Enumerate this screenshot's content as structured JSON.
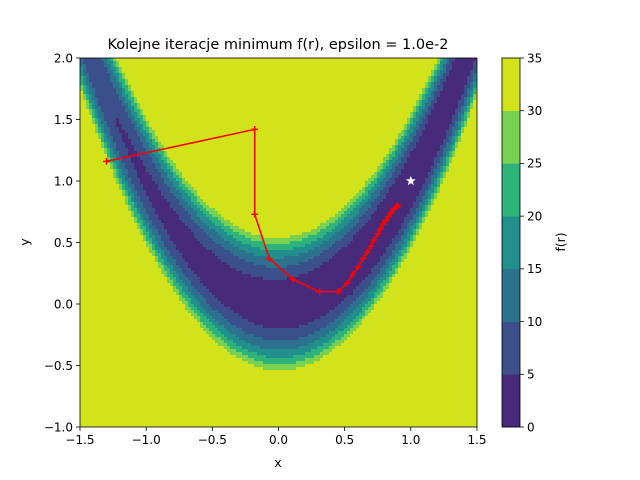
{
  "chart_data": {
    "type": "contour",
    "title": "Kolejne iteracje minimum f(r), epsilon = 1.0e-2",
    "xlabel": "x",
    "ylabel": "y",
    "colorbar_label": "f(r)",
    "function": "rosenbrock",
    "xlim": [
      -1.5,
      1.5
    ],
    "ylim": [
      -1.0,
      2.0
    ],
    "x_ticks": [
      "−1.5",
      "−1.0",
      "−0.5",
      "0.0",
      "0.5",
      "1.0",
      "1.5"
    ],
    "y_ticks": [
      "−1.0",
      "−0.5",
      "0.0",
      "0.5",
      "1.0",
      "1.5",
      "2.0"
    ],
    "x_tick_values": [
      -1.5,
      -1.0,
      -0.5,
      0.0,
      0.5,
      1.0,
      1.5
    ],
    "y_tick_values": [
      -1.0,
      -0.5,
      0.0,
      0.5,
      1.0,
      1.5,
      2.0
    ],
    "levels": [
      0,
      5,
      10,
      15,
      20,
      25,
      30,
      35
    ],
    "level_labels": [
      "0",
      "5",
      "10",
      "15",
      "20",
      "25",
      "30",
      "35"
    ],
    "level_colors": [
      "#472b7a",
      "#3b4f8a",
      "#2c718e",
      "#21908d",
      "#2eb37c",
      "#79d151",
      "#d2e21b"
    ],
    "path_color": "#ff0000",
    "iterations": {
      "x": [
        -1.3,
        -0.18,
        -0.18,
        -0.07,
        0.11,
        0.31,
        0.45,
        0.52,
        0.56,
        0.6,
        0.64,
        0.67,
        0.7,
        0.72,
        0.75,
        0.77,
        0.79,
        0.81,
        0.83,
        0.85,
        0.87,
        0.89,
        0.9
      ],
      "y": [
        1.16,
        1.42,
        0.73,
        0.37,
        0.2,
        0.1,
        0.1,
        0.17,
        0.24,
        0.3,
        0.37,
        0.42,
        0.47,
        0.52,
        0.57,
        0.61,
        0.65,
        0.68,
        0.71,
        0.74,
        0.77,
        0.79,
        0.8
      ]
    },
    "minimum": {
      "x": 1.0,
      "y": 1.0,
      "color": "#ffffff"
    }
  }
}
